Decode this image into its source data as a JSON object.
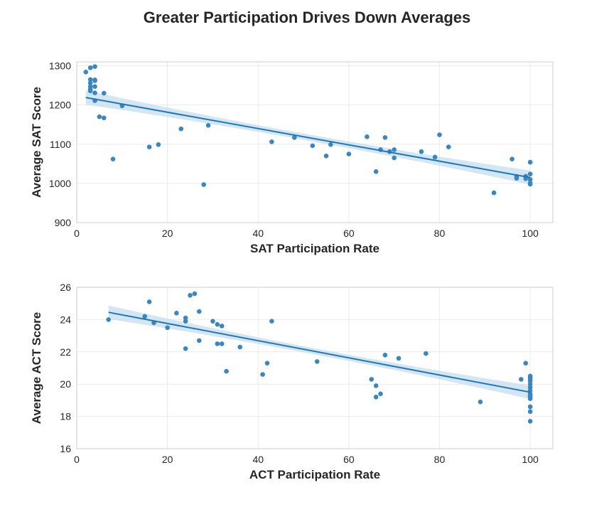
{
  "figure": {
    "title": "Greater Participation Drives Down Averages",
    "colors": {
      "point": "#3a86c0",
      "line": "#1f77b4",
      "band": "#c6dcef",
      "grid": "#ebebeb",
      "frame": "#cccccc",
      "text": "#262626"
    }
  },
  "chart_data": [
    {
      "type": "scatter",
      "title": "",
      "xlabel": "SAT Participation Rate",
      "ylabel": "Average SAT Score",
      "xlim": [
        0,
        105
      ],
      "ylim": [
        900,
        1310
      ],
      "xticks": [
        0,
        20,
        40,
        60,
        80,
        100
      ],
      "yticks": [
        900,
        1000,
        1100,
        1200,
        1300
      ],
      "grid": true,
      "regression": {
        "x0": 2,
        "y0": 1219,
        "x1": 100,
        "y1": 1015,
        "ci_half_width": 18
      },
      "points": [
        {
          "x": 2,
          "y": 1284
        },
        {
          "x": 3,
          "y": 1295
        },
        {
          "x": 4,
          "y": 1298
        },
        {
          "x": 3,
          "y": 1265
        },
        {
          "x": 4,
          "y": 1264
        },
        {
          "x": 3,
          "y": 1256
        },
        {
          "x": 4,
          "y": 1262
        },
        {
          "x": 3,
          "y": 1247
        },
        {
          "x": 4,
          "y": 1247
        },
        {
          "x": 3,
          "y": 1236
        },
        {
          "x": 3,
          "y": 1240
        },
        {
          "x": 4,
          "y": 1231
        },
        {
          "x": 6,
          "y": 1230
        },
        {
          "x": 4,
          "y": 1211
        },
        {
          "x": 5,
          "y": 1170
        },
        {
          "x": 6,
          "y": 1167
        },
        {
          "x": 10,
          "y": 1198
        },
        {
          "x": 8,
          "y": 1062
        },
        {
          "x": 16,
          "y": 1093
        },
        {
          "x": 18,
          "y": 1099
        },
        {
          "x": 23,
          "y": 1139
        },
        {
          "x": 28,
          "y": 997
        },
        {
          "x": 29,
          "y": 1148
        },
        {
          "x": 43,
          "y": 1106
        },
        {
          "x": 48,
          "y": 1117
        },
        {
          "x": 52,
          "y": 1096
        },
        {
          "x": 55,
          "y": 1070
        },
        {
          "x": 56,
          "y": 1099
        },
        {
          "x": 60,
          "y": 1075
        },
        {
          "x": 64,
          "y": 1119
        },
        {
          "x": 66,
          "y": 1030
        },
        {
          "x": 67,
          "y": 1086
        },
        {
          "x": 68,
          "y": 1117
        },
        {
          "x": 69,
          "y": 1081
        },
        {
          "x": 70,
          "y": 1086
        },
        {
          "x": 70,
          "y": 1065
        },
        {
          "x": 76,
          "y": 1081
        },
        {
          "x": 79,
          "y": 1067
        },
        {
          "x": 80,
          "y": 1124
        },
        {
          "x": 82,
          "y": 1093
        },
        {
          "x": 92,
          "y": 976
        },
        {
          "x": 96,
          "y": 1062
        },
        {
          "x": 97,
          "y": 1018
        },
        {
          "x": 97,
          "y": 1013
        },
        {
          "x": 99,
          "y": 1018
        },
        {
          "x": 99,
          "y": 1012
        },
        {
          "x": 100,
          "y": 1054
        },
        {
          "x": 100,
          "y": 1024
        },
        {
          "x": 100,
          "y": 1010
        },
        {
          "x": 100,
          "y": 1001
        },
        {
          "x": 100,
          "y": 998
        }
      ]
    },
    {
      "type": "scatter",
      "title": "",
      "xlabel": "ACT Participation Rate",
      "ylabel": "Average ACT Score",
      "xlim": [
        0,
        105
      ],
      "ylim": [
        16,
        26
      ],
      "xticks": [
        0,
        20,
        40,
        60,
        80,
        100
      ],
      "yticks": [
        16,
        18,
        20,
        22,
        24,
        26
      ],
      "grid": true,
      "regression": {
        "x0": 7,
        "y0": 24.45,
        "x1": 100,
        "y1": 19.5,
        "ci_half_width": 0.42
      },
      "points": [
        {
          "x": 7,
          "y": 24.0
        },
        {
          "x": 15,
          "y": 24.2
        },
        {
          "x": 16,
          "y": 25.1
        },
        {
          "x": 17,
          "y": 23.8
        },
        {
          "x": 20,
          "y": 23.5
        },
        {
          "x": 22,
          "y": 24.4
        },
        {
          "x": 24,
          "y": 24.1
        },
        {
          "x": 24,
          "y": 23.9
        },
        {
          "x": 24,
          "y": 22.2
        },
        {
          "x": 25,
          "y": 25.5
        },
        {
          "x": 26,
          "y": 25.6
        },
        {
          "x": 27,
          "y": 24.5
        },
        {
          "x": 27,
          "y": 22.7
        },
        {
          "x": 30,
          "y": 23.9
        },
        {
          "x": 31,
          "y": 23.7
        },
        {
          "x": 31,
          "y": 22.5
        },
        {
          "x": 32,
          "y": 23.6
        },
        {
          "x": 32,
          "y": 22.5
        },
        {
          "x": 33,
          "y": 20.8
        },
        {
          "x": 36,
          "y": 22.3
        },
        {
          "x": 41,
          "y": 20.6
        },
        {
          "x": 42,
          "y": 21.3
        },
        {
          "x": 43,
          "y": 23.9
        },
        {
          "x": 53,
          "y": 21.4
        },
        {
          "x": 65,
          "y": 20.3
        },
        {
          "x": 66,
          "y": 19.9
        },
        {
          "x": 66,
          "y": 19.2
        },
        {
          "x": 67,
          "y": 19.4
        },
        {
          "x": 68,
          "y": 21.8
        },
        {
          "x": 71,
          "y": 21.6
        },
        {
          "x": 77,
          "y": 21.9
        },
        {
          "x": 89,
          "y": 18.9
        },
        {
          "x": 98,
          "y": 20.3
        },
        {
          "x": 99,
          "y": 21.3
        },
        {
          "x": 100,
          "y": 20.5
        },
        {
          "x": 100,
          "y": 20.4
        },
        {
          "x": 100,
          "y": 20.3
        },
        {
          "x": 100,
          "y": 20.2
        },
        {
          "x": 100,
          "y": 20.0
        },
        {
          "x": 100,
          "y": 19.8
        },
        {
          "x": 100,
          "y": 19.6
        },
        {
          "x": 100,
          "y": 19.4
        },
        {
          "x": 100,
          "y": 19.3
        },
        {
          "x": 100,
          "y": 19.2
        },
        {
          "x": 100,
          "y": 19.1
        },
        {
          "x": 100,
          "y": 18.6
        },
        {
          "x": 100,
          "y": 18.3
        },
        {
          "x": 100,
          "y": 17.7
        }
      ]
    }
  ]
}
